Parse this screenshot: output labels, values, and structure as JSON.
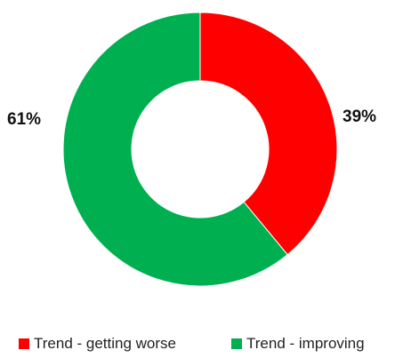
{
  "chart_data": {
    "type": "pie",
    "variant": "donut",
    "slices": [
      {
        "label": "Trend - getting worse",
        "value": 39,
        "display": "39%",
        "color": "#ff0000"
      },
      {
        "label": "Trend - improving",
        "value": 61,
        "display": "61%",
        "color": "#00b050"
      }
    ],
    "start_angle_deg": 0,
    "direction": "clockwise",
    "legend_position": "bottom",
    "title": ""
  }
}
